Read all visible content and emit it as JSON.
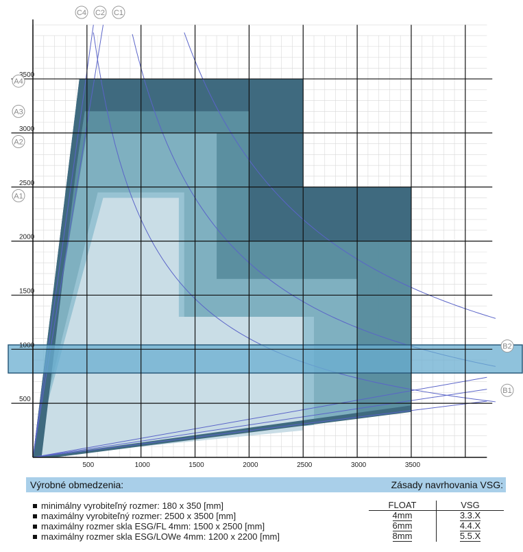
{
  "chart_data": {
    "type": "diagram",
    "x_ticks": [
      "500",
      "1000",
      "1500",
      "2000",
      "2500",
      "3000",
      "3500"
    ],
    "y_ticks": [
      "500",
      "1000",
      "1500",
      "2000",
      "2500",
      "3000",
      "3500"
    ],
    "xlim": [
      0,
      4000
    ],
    "ylim": [
      0,
      4000
    ],
    "region_colors": [
      "#c9dde6",
      "#98c3d3",
      "#7fb0c0",
      "#5b8fa0",
      "#3f6a7f"
    ],
    "band_color": "#6aaed0",
    "labels_top": [
      "C4",
      "C2",
      "C1"
    ],
    "labels_left": [
      "A4",
      "A3",
      "A2",
      "A1"
    ],
    "labels_right": [
      "B2",
      "B1"
    ]
  },
  "footer": {
    "left": "Výrobné obmedzenia:",
    "right": "Zásady navrhovania VSG:"
  },
  "constraints": [
    "minimálny vyrobiteľný rozmer: 180 x 350 [mm]",
    "maximálny vyrobiteľný rozmer: 2500 x 3500 [mm]",
    "maximálny rozmer skla ESG/FL 4mm: 1500 x 2500 [mm]",
    "maximálny rozmer skla ESG/LOWe 4mm: 1200 x 2200 [mm]"
  ],
  "vsg_table": {
    "headers": [
      "FLOAT",
      "VSG"
    ],
    "rows": [
      [
        "4mm",
        "3.3.X"
      ],
      [
        "6mm",
        "4.4.X"
      ],
      [
        "8mm",
        "5.5.X"
      ]
    ]
  }
}
